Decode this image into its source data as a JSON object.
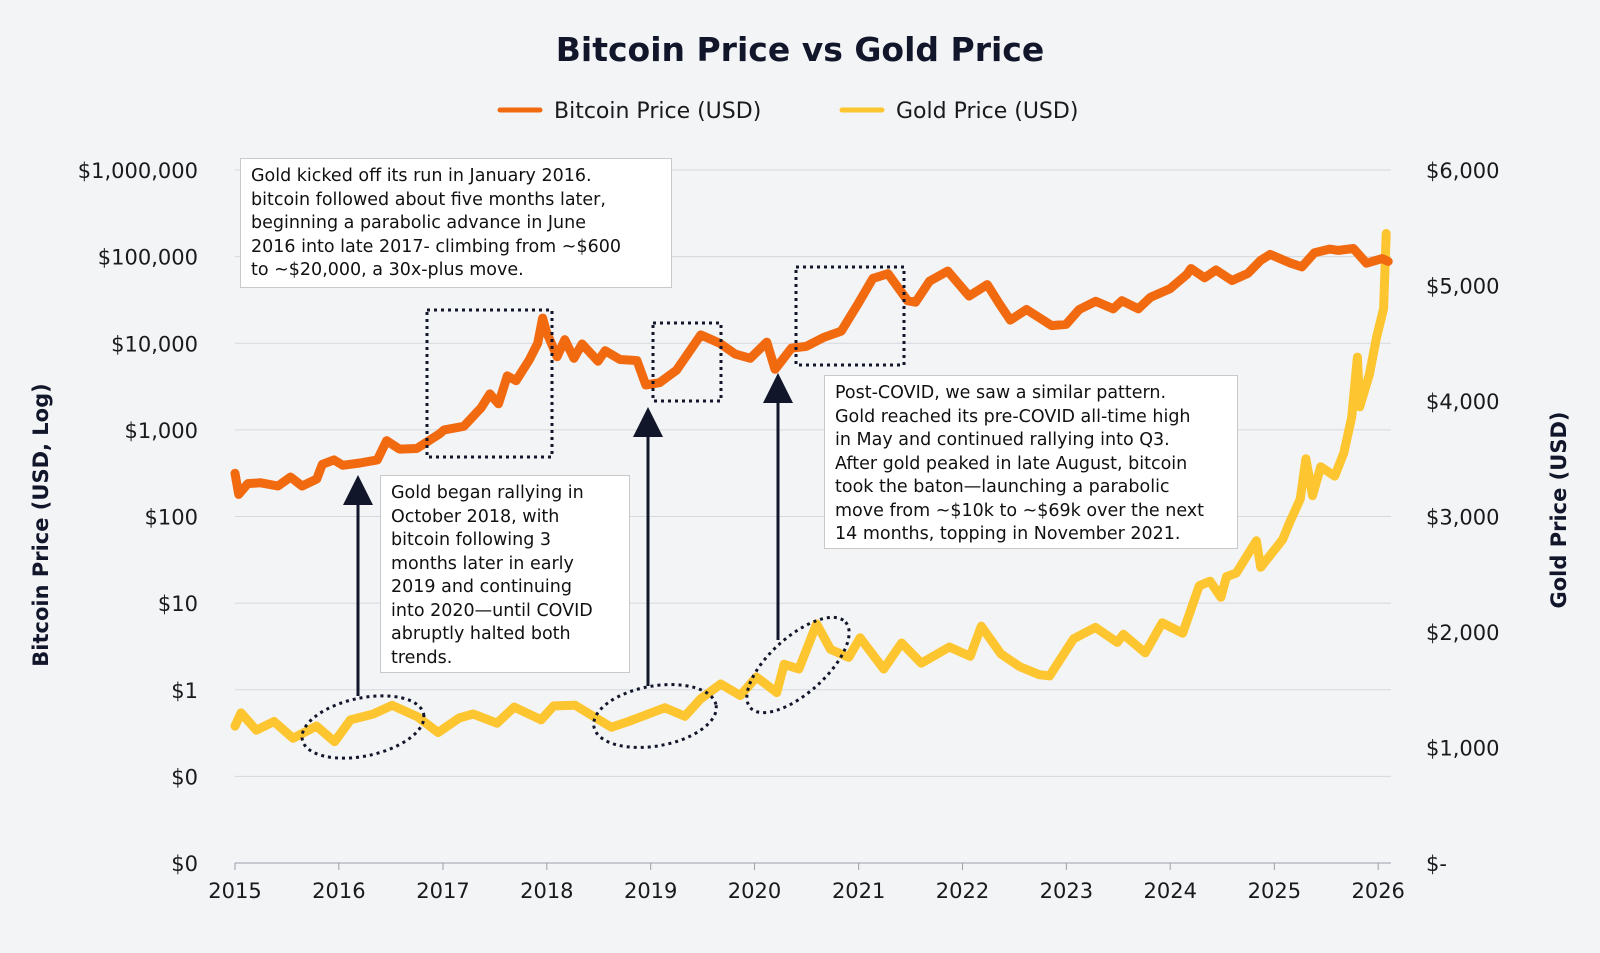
{
  "chart_data": {
    "type": "line",
    "title": "Bitcoin Price vs Gold Price",
    "legend": {
      "placement": "top-center",
      "entries": [
        "Bitcoin Price (USD)",
        "Gold Price (USD)"
      ]
    },
    "grid": true,
    "colors": {
      "bitcoin": "#f26a10",
      "gold": "#fdc530",
      "annotation": "#12162b"
    },
    "xlim": [
      "2015-01-01",
      "2026-02-15"
    ],
    "x_ticks": [
      "2015",
      "2016",
      "2017",
      "2018",
      "2019",
      "2020",
      "2021",
      "2022",
      "2023",
      "2024",
      "2025",
      "2026"
    ],
    "y_left": {
      "label": "Bitcoin Price (USD, Log)",
      "scale": "log",
      "ylim": [
        0.01,
        1000000
      ],
      "ticks": [
        {
          "value": 1000000,
          "label": "$1,000,000"
        },
        {
          "value": 100000,
          "label": "$100,000"
        },
        {
          "value": 10000,
          "label": "$10,000"
        },
        {
          "value": 1000,
          "label": "$1,000"
        },
        {
          "value": 100,
          "label": "$100"
        },
        {
          "value": 10,
          "label": "$10"
        },
        {
          "value": 1,
          "label": "$1"
        },
        {
          "value": 0.1,
          "label": "$0"
        },
        {
          "value": 0.01,
          "label": "$0"
        }
      ]
    },
    "y_right": {
      "label": "Gold Price (USD)",
      "scale": "linear",
      "ylim": [
        0,
        6000
      ],
      "ticks": [
        {
          "value": 6000,
          "label": "$6,000"
        },
        {
          "value": 5000,
          "label": "$5,000"
        },
        {
          "value": 4000,
          "label": "$4,000"
        },
        {
          "value": 3000,
          "label": "$3,000"
        },
        {
          "value": 2000,
          "label": "$2,000"
        },
        {
          "value": 1000,
          "label": "$1,000"
        },
        {
          "value": 0,
          "label": "$-"
        }
      ]
    },
    "series": [
      {
        "name": "Bitcoin Price (USD)",
        "axis": "left",
        "points": [
          [
            "2015-01-01",
            315
          ],
          [
            "2015-01-14",
            180
          ],
          [
            "2015-02-15",
            240
          ],
          [
            "2015-04-01",
            245
          ],
          [
            "2015-06-01",
            225
          ],
          [
            "2015-07-15",
            285
          ],
          [
            "2015-08-25",
            225
          ],
          [
            "2015-10-15",
            270
          ],
          [
            "2015-11-04",
            400
          ],
          [
            "2015-12-15",
            450
          ],
          [
            "2016-01-15",
            390
          ],
          [
            "2016-03-15",
            415
          ],
          [
            "2016-05-15",
            450
          ],
          [
            "2016-06-17",
            750
          ],
          [
            "2016-08-01",
            600
          ],
          [
            "2016-10-01",
            610
          ],
          [
            "2016-12-20",
            900
          ],
          [
            "2017-01-05",
            1000
          ],
          [
            "2017-03-15",
            1100
          ],
          [
            "2017-05-15",
            1800
          ],
          [
            "2017-06-15",
            2600
          ],
          [
            "2017-07-15",
            2000
          ],
          [
            "2017-08-15",
            4200
          ],
          [
            "2017-09-15",
            3700
          ],
          [
            "2017-10-31",
            6400
          ],
          [
            "2017-11-30",
            10000
          ],
          [
            "2017-12-17",
            19500
          ],
          [
            "2017-12-31",
            13500
          ],
          [
            "2018-02-06",
            7000
          ],
          [
            "2018-03-05",
            11000
          ],
          [
            "2018-04-06",
            6700
          ],
          [
            "2018-05-05",
            9800
          ],
          [
            "2018-06-30",
            6200
          ],
          [
            "2018-07-25",
            8200
          ],
          [
            "2018-09-15",
            6500
          ],
          [
            "2018-11-14",
            6300
          ],
          [
            "2018-12-15",
            3300
          ],
          [
            "2019-02-01",
            3500
          ],
          [
            "2019-04-02",
            4900
          ],
          [
            "2019-06-26",
            12500
          ],
          [
            "2019-09-01",
            10000
          ],
          [
            "2019-10-25",
            7500
          ],
          [
            "2019-12-17",
            6700
          ],
          [
            "2020-02-13",
            10300
          ],
          [
            "2020-03-13",
            5000
          ],
          [
            "2020-05-10",
            8800
          ],
          [
            "2020-07-01",
            9200
          ],
          [
            "2020-09-01",
            11700
          ],
          [
            "2020-11-01",
            13800
          ],
          [
            "2020-12-31",
            29000
          ],
          [
            "2021-02-20",
            56000
          ],
          [
            "2021-04-14",
            63500
          ],
          [
            "2021-06-22",
            31000
          ],
          [
            "2021-07-20",
            29800
          ],
          [
            "2021-09-07",
            52000
          ],
          [
            "2021-11-10",
            68000
          ],
          [
            "2022-01-24",
            35000
          ],
          [
            "2022-03-29",
            47500
          ],
          [
            "2022-05-12",
            28000
          ],
          [
            "2022-06-18",
            18500
          ],
          [
            "2022-08-14",
            24500
          ],
          [
            "2022-11-10",
            16000
          ],
          [
            "2022-12-31",
            16500
          ],
          [
            "2023-02-15",
            24500
          ],
          [
            "2023-04-14",
            30500
          ],
          [
            "2023-06-15",
            25000
          ],
          [
            "2023-07-15",
            31000
          ],
          [
            "2023-09-11",
            25000
          ],
          [
            "2023-10-24",
            34000
          ],
          [
            "2023-12-31",
            42500
          ],
          [
            "2024-02-28",
            62000
          ],
          [
            "2024-03-14",
            73000
          ],
          [
            "2024-05-01",
            57000
          ],
          [
            "2024-06-10",
            70000
          ],
          [
            "2024-08-05",
            53000
          ],
          [
            "2024-09-30",
            64000
          ],
          [
            "2024-11-13",
            90000
          ],
          [
            "2024-12-17",
            106000
          ],
          [
            "2025-02-28",
            84000
          ],
          [
            "2025-04-08",
            76000
          ],
          [
            "2025-05-22",
            111000
          ],
          [
            "2025-07-14",
            122000
          ],
          [
            "2025-08-14",
            118000
          ],
          [
            "2025-10-06",
            124000
          ],
          [
            "2025-11-21",
            84000
          ],
          [
            "2026-01-15",
            95000
          ],
          [
            "2026-02-05",
            88000
          ]
        ]
      },
      {
        "name": "Gold Price (USD)",
        "axis": "right",
        "points": [
          [
            "2015-01-01",
            1185
          ],
          [
            "2015-01-22",
            1300
          ],
          [
            "2015-03-17",
            1150
          ],
          [
            "2015-05-18",
            1225
          ],
          [
            "2015-07-24",
            1080
          ],
          [
            "2015-10-14",
            1185
          ],
          [
            "2015-12-17",
            1050
          ],
          [
            "2016-02-11",
            1240
          ],
          [
            "2016-05-01",
            1290
          ],
          [
            "2016-07-06",
            1365
          ],
          [
            "2016-10-04",
            1265
          ],
          [
            "2016-12-15",
            1130
          ],
          [
            "2017-02-27",
            1255
          ],
          [
            "2017-04-17",
            1290
          ],
          [
            "2017-07-10",
            1210
          ],
          [
            "2017-09-08",
            1350
          ],
          [
            "2017-12-12",
            1240
          ],
          [
            "2018-01-25",
            1360
          ],
          [
            "2018-04-11",
            1365
          ],
          [
            "2018-08-16",
            1175
          ],
          [
            "2018-10-15",
            1225
          ],
          [
            "2019-02-20",
            1345
          ],
          [
            "2019-05-01",
            1270
          ],
          [
            "2019-06-25",
            1420
          ],
          [
            "2019-09-04",
            1550
          ],
          [
            "2019-11-12",
            1450
          ],
          [
            "2020-01-08",
            1610
          ],
          [
            "2020-03-19",
            1475
          ],
          [
            "2020-04-14",
            1720
          ],
          [
            "2020-06-05",
            1680
          ],
          [
            "2020-08-06",
            2070
          ],
          [
            "2020-09-24",
            1850
          ],
          [
            "2020-11-27",
            1780
          ],
          [
            "2021-01-06",
            1950
          ],
          [
            "2021-03-30",
            1680
          ],
          [
            "2021-06-01",
            1905
          ],
          [
            "2021-08-09",
            1730
          ],
          [
            "2021-11-16",
            1870
          ],
          [
            "2022-01-28",
            1790
          ],
          [
            "2022-03-08",
            2050
          ],
          [
            "2022-05-16",
            1810
          ],
          [
            "2022-07-21",
            1700
          ],
          [
            "2022-09-28",
            1630
          ],
          [
            "2022-11-03",
            1620
          ],
          [
            "2023-01-26",
            1940
          ],
          [
            "2023-04-13",
            2040
          ],
          [
            "2023-06-29",
            1910
          ],
          [
            "2023-07-20",
            1980
          ],
          [
            "2023-10-05",
            1820
          ],
          [
            "2023-12-04",
            2080
          ],
          [
            "2024-02-14",
            1990
          ],
          [
            "2024-04-12",
            2400
          ],
          [
            "2024-05-20",
            2440
          ],
          [
            "2024-06-27",
            2300
          ],
          [
            "2024-07-17",
            2480
          ],
          [
            "2024-08-20",
            2510
          ],
          [
            "2024-10-30",
            2790
          ],
          [
            "2024-11-14",
            2560
          ],
          [
            "2025-01-30",
            2800
          ],
          [
            "2025-02-24",
            2950
          ],
          [
            "2025-04-02",
            3150
          ],
          [
            "2025-04-22",
            3500
          ],
          [
            "2025-05-15",
            3180
          ],
          [
            "2025-06-13",
            3430
          ],
          [
            "2025-08-01",
            3350
          ],
          [
            "2025-09-02",
            3550
          ],
          [
            "2025-09-30",
            3860
          ],
          [
            "2025-10-20",
            4380
          ],
          [
            "2025-10-28",
            3950
          ],
          [
            "2025-12-01",
            4230
          ],
          [
            "2025-12-26",
            4550
          ],
          [
            "2026-01-20",
            4800
          ],
          [
            "2026-01-29",
            5450
          ]
        ]
      }
    ],
    "annotations": [
      {
        "id": "note-2016",
        "text": "Gold kicked off its run in January 2016.\nbitcoin followed about five months later,\nbeginning a parabolic advance in June\n2016 into late 2017- climbing from ~$600\nto ~$20,000, a 30x-plus move."
      },
      {
        "id": "note-2018",
        "text": "Gold began rallying in\nOctober 2018, with\nbitcoin following  3\nmonths later in early\n2019 and continuing\ninto 2020—until COVID\nabruptly halted both\ntrends."
      },
      {
        "id": "note-covid",
        "text": "Post-COVID, we saw a similar pattern.\nGold reached its pre-COVID all-time high\nin May and continued rallying into Q3.\nAfter gold peaked in late August, bitcoin\ntook the baton—launching a parabolic\nmove from ~$10k to ~$69k over the next\n14 months, topping in November 2021."
      }
    ]
  }
}
